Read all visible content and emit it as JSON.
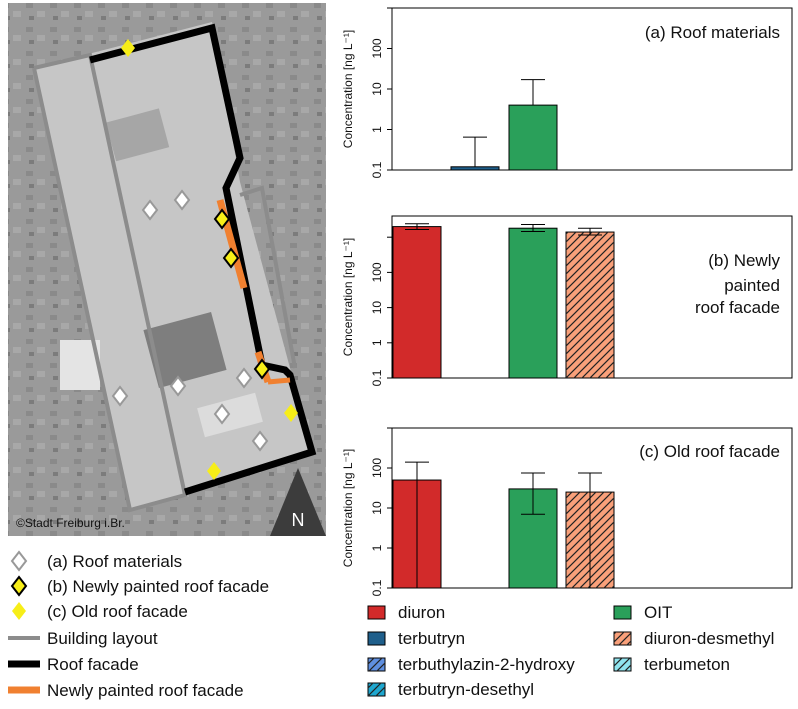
{
  "map": {
    "copyright": "©Stadt Freiburg i.Br.",
    "north_label": "N",
    "legend": [
      {
        "symbol": "diamond-outline",
        "label": "(a) Roof materials"
      },
      {
        "symbol": "diamond-yellow-outlined",
        "label": "(b) Newly painted roof facade"
      },
      {
        "symbol": "diamond-yellow",
        "label": "(c) Old roof facade"
      },
      {
        "symbol": "line-gray",
        "label": "Building layout"
      },
      {
        "symbol": "line-black",
        "label": "Roof facade"
      },
      {
        "symbol": "line-orange",
        "label": "Newly painted roof facade"
      }
    ]
  },
  "chart_data": [
    {
      "type": "bar",
      "title_lines": [
        "(a) Roof materials"
      ],
      "ylabel": "Concentration [ng L⁻¹]",
      "yscale": "log",
      "ylim": [
        0.1,
        1000
      ],
      "yticks": [
        "0.1",
        "1",
        "10",
        "100"
      ],
      "categories": [
        "diuron",
        "terbutryn",
        "terbuthylazin-2-hydroxy",
        "terbutryn-desethyl",
        "OIT",
        "diuron-desmethyl",
        "terbumeton"
      ],
      "values": [
        null,
        0.12,
        null,
        null,
        4,
        null,
        null
      ],
      "error_upper": [
        null,
        0.65,
        null,
        null,
        17,
        null,
        null
      ]
    },
    {
      "type": "bar",
      "title_lines": [
        "(b) Newly",
        "painted",
        "roof facade"
      ],
      "ylabel": "Concentration [ng L⁻¹]",
      "yscale": "log",
      "ylim": [
        0.1,
        4000
      ],
      "yticks": [
        "0.1",
        "1",
        "10",
        "100"
      ],
      "categories": [
        "diuron",
        "terbutryn",
        "terbuthylazin-2-hydroxy",
        "terbutryn-desethyl",
        "OIT",
        "diuron-desmethyl",
        "terbumeton"
      ],
      "values": [
        2000,
        null,
        null,
        null,
        1800,
        1400,
        null
      ],
      "error_upper": [
        2400,
        null,
        null,
        null,
        2300,
        1800,
        null
      ],
      "error_lower": [
        1650,
        null,
        null,
        null,
        1450,
        1150,
        null
      ]
    },
    {
      "type": "bar",
      "title_lines": [
        "(c) Old roof facade"
      ],
      "ylabel": "Concentration [ng L⁻¹]",
      "yscale": "log",
      "ylim": [
        0.1,
        1000
      ],
      "yticks": [
        "0.1",
        "1",
        "10",
        "100"
      ],
      "categories": [
        "diuron",
        "terbutryn",
        "terbuthylazin-2-hydroxy",
        "terbutryn-desethyl",
        "OIT",
        "diuron-desmethyl",
        "terbumeton"
      ],
      "values": [
        50,
        null,
        null,
        null,
        30,
        25,
        null
      ],
      "error_upper": [
        140,
        null,
        null,
        null,
        75,
        75,
        null
      ],
      "error_lower": [
        0.1,
        null,
        null,
        null,
        7,
        0.1,
        null
      ]
    }
  ],
  "series_legend": [
    {
      "name": "diuron",
      "color": "#d22a2a",
      "hatch": "none"
    },
    {
      "name": "OIT",
      "color": "#2aa05a",
      "hatch": "none"
    },
    {
      "name": "terbutryn",
      "color": "#1f5f8b",
      "hatch": "none"
    },
    {
      "name": "diuron-desmethyl",
      "color": "#f9a07a",
      "hatch": "diag"
    },
    {
      "name": "terbuthylazin-2-hydroxy",
      "color": "#5f8fe0",
      "hatch": "diag"
    },
    {
      "name": "terbumeton",
      "color": "#8fe4ee",
      "hatch": "diag"
    },
    {
      "name": "terbutryn-desethyl",
      "color": "#1fa7cf",
      "hatch": "diag"
    }
  ]
}
